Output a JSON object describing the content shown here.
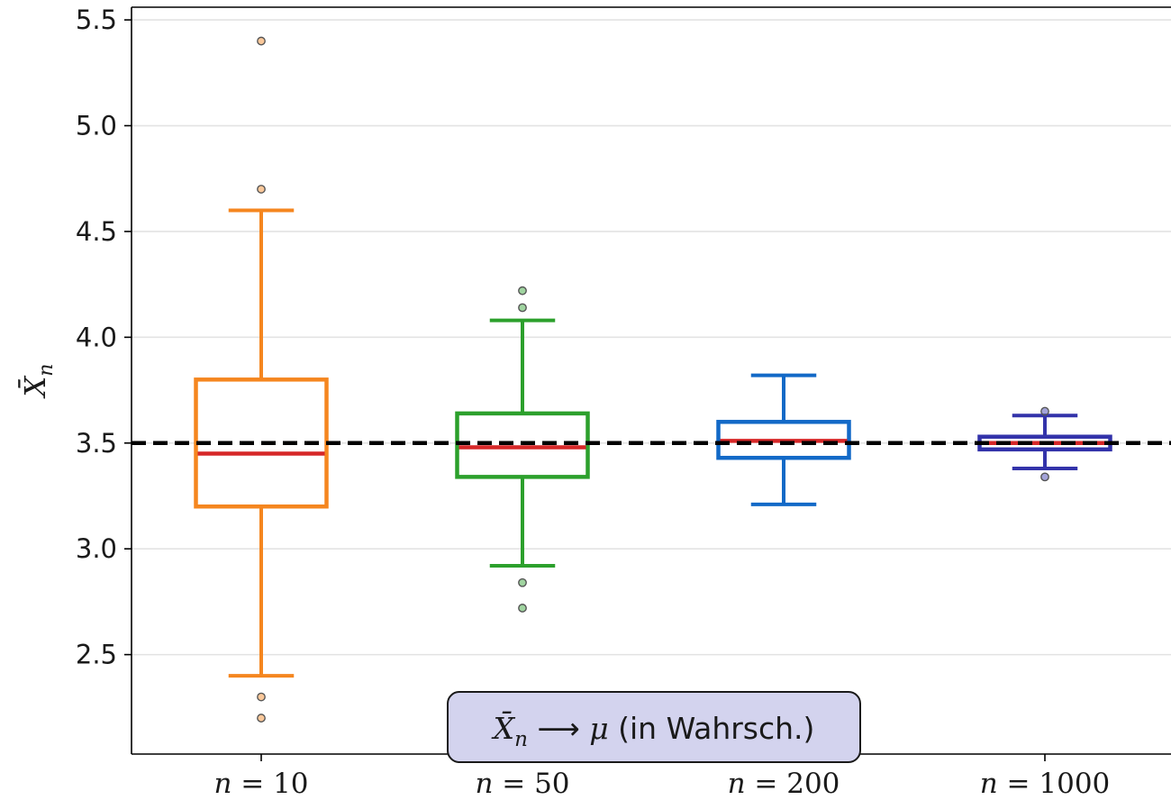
{
  "chart_data": {
    "type": "box",
    "ylabel": "X̄n",
    "ylim": [
      2.03,
      5.56
    ],
    "yticks": [
      "2.5",
      "3.0",
      "3.5",
      "4.0",
      "4.5",
      "5.0",
      "5.5"
    ],
    "grid": "horizontal",
    "reference_line": {
      "y": 3.5,
      "style": "dashed",
      "color": "#000000"
    },
    "categories": [
      "n = 10",
      "n = 50",
      "n = 200",
      "n = 1000"
    ],
    "boxes": [
      {
        "category": "n = 10",
        "color": "#f5861f",
        "whisker_low": 2.4,
        "q1": 3.2,
        "median": 3.45,
        "q3": 3.8,
        "whisker_high": 4.6,
        "fliers": [
          2.2,
          2.3,
          4.7,
          5.4
        ]
      },
      {
        "category": "n = 50",
        "color": "#2ca02c",
        "whisker_low": 2.92,
        "q1": 3.34,
        "median": 3.48,
        "q3": 3.64,
        "whisker_high": 4.08,
        "fliers": [
          2.72,
          2.84,
          4.14,
          4.22
        ]
      },
      {
        "category": "n = 200",
        "color": "#1269c7",
        "whisker_low": 3.21,
        "q1": 3.43,
        "median": 3.51,
        "q3": 3.6,
        "whisker_high": 3.82,
        "fliers": []
      },
      {
        "category": "n = 1000",
        "color": "#3333aa",
        "whisker_low": 3.38,
        "q1": 3.47,
        "median": 3.5,
        "q3": 3.53,
        "whisker_high": 3.63,
        "fliers": [
          3.34,
          3.65
        ]
      }
    ],
    "median_color": "#d62728",
    "annotation": {
      "text": "X̄n ⟶ μ (in Wahrsch.)",
      "lead": "X̄",
      "sub": "n",
      "arrow": " ⟶ ",
      "mu": "μ",
      "rest": " (in Wahrsch.)",
      "background": "#d3d3ee"
    }
  }
}
